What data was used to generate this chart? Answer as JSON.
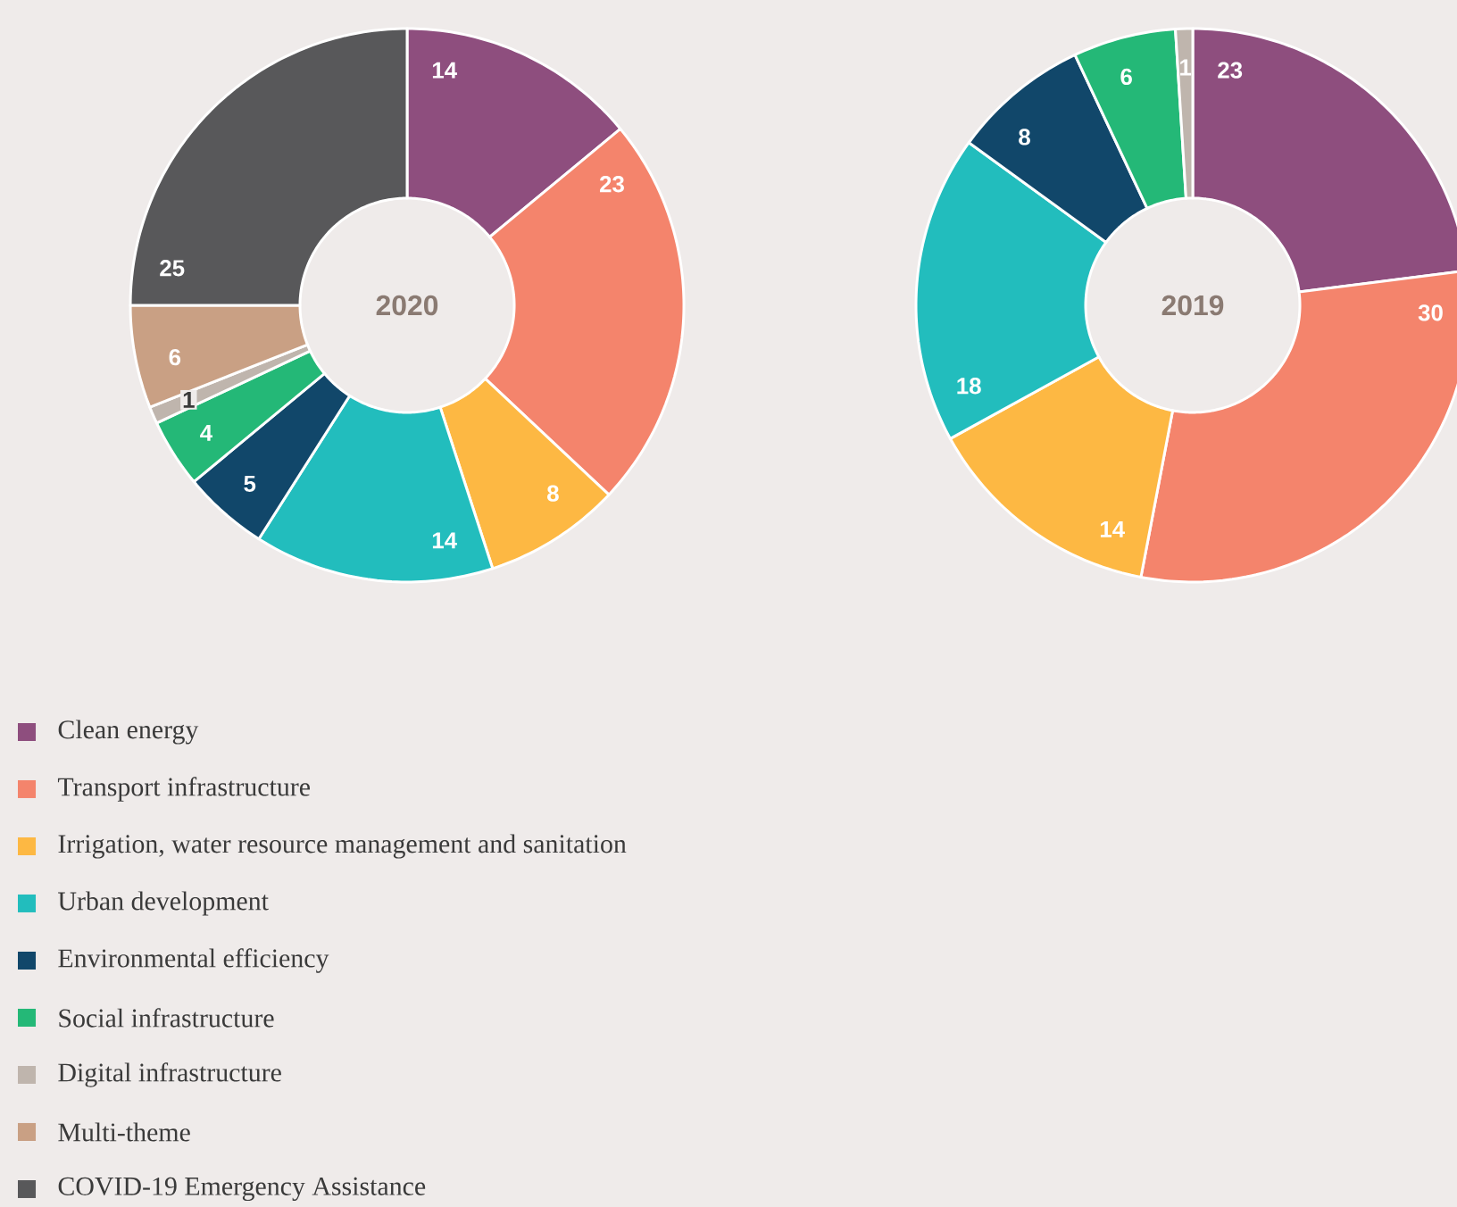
{
  "chart_data": [
    {
      "type": "donut",
      "title": "2020",
      "categories": [
        "Clean energy",
        "Transport infrastructure",
        "Irrigation, water resource management and sanitation",
        "Urban development",
        "Environmental efficiency",
        "Social infrastructure",
        "Digital infrastructure",
        "Multi-theme",
        "COVID-19 Emergency Assistance"
      ],
      "values": [
        14,
        23,
        8,
        14,
        5,
        4,
        1,
        6,
        25
      ],
      "colors": [
        "#8e4e7e",
        "#f4846c",
        "#fdb843",
        "#22bdbd",
        "#11476a",
        "#24b877",
        "#bfb5ad",
        "#c9a084",
        "#58585a"
      ],
      "data_labels": true,
      "legend": "bottom"
    },
    {
      "type": "donut",
      "title": "2019",
      "categories": [
        null,
        null,
        null,
        null,
        null,
        null,
        null
      ],
      "values": [
        23,
        30,
        14,
        18,
        8,
        6,
        1
      ],
      "colors": [
        "#8e4e7e",
        "#f4846c",
        "#fdb843",
        "#22bdbd",
        "#11476a",
        "#24b877",
        "#bfb5ad"
      ],
      "data_labels": true
    }
  ]
}
